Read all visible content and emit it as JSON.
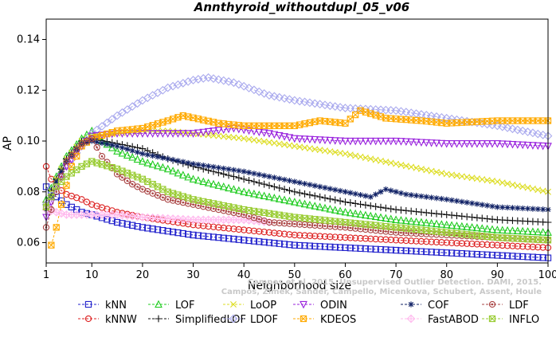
{
  "chart_data": {
    "type": "line",
    "title": "Annthyroid_withoutdupl_05_v06",
    "xlabel": "Neighborhood size",
    "ylabel": "AP",
    "xlim": [
      1,
      100
    ],
    "ylim": [
      0.052,
      0.148
    ],
    "xticks": [
      1,
      10,
      20,
      30,
      40,
      50,
      60,
      70,
      80,
      90,
      100
    ],
    "yticks": [
      0.06,
      0.08,
      0.1,
      0.12,
      0.14
    ],
    "ytick_labels": [
      "0.06",
      "0.08",
      "0.10",
      "0.12",
      "0.14"
    ],
    "grid": false,
    "legend_position": "bottom",
    "series": [
      {
        "name": "kNN",
        "color": "#2222cc",
        "marker": "square",
        "points": [
          [
            1,
            0.082
          ],
          [
            2,
            0.08
          ],
          [
            3,
            0.078
          ],
          [
            5,
            0.075
          ],
          [
            8,
            0.072
          ],
          [
            10,
            0.071
          ],
          [
            15,
            0.068
          ],
          [
            20,
            0.066
          ],
          [
            30,
            0.063
          ],
          [
            40,
            0.061
          ],
          [
            50,
            0.059
          ],
          [
            60,
            0.058
          ],
          [
            70,
            0.057
          ],
          [
            80,
            0.056
          ],
          [
            90,
            0.055
          ],
          [
            100,
            0.054
          ]
        ]
      },
      {
        "name": "kNNW",
        "color": "#dd2222",
        "marker": "circle",
        "points": [
          [
            1,
            0.09
          ],
          [
            2,
            0.085
          ],
          [
            3,
            0.082
          ],
          [
            5,
            0.079
          ],
          [
            8,
            0.077
          ],
          [
            10,
            0.075
          ],
          [
            15,
            0.072
          ],
          [
            20,
            0.07
          ],
          [
            30,
            0.067
          ],
          [
            40,
            0.065
          ],
          [
            50,
            0.063
          ],
          [
            60,
            0.062
          ],
          [
            70,
            0.061
          ],
          [
            80,
            0.06
          ],
          [
            90,
            0.059
          ],
          [
            100,
            0.058
          ]
        ]
      },
      {
        "name": "LOF",
        "color": "#22cc22",
        "marker": "triangle-up",
        "points": [
          [
            1,
            0.077
          ],
          [
            3,
            0.086
          ],
          [
            5,
            0.094
          ],
          [
            8,
            0.101
          ],
          [
            10,
            0.104
          ],
          [
            12,
            0.1
          ],
          [
            15,
            0.096
          ],
          [
            20,
            0.092
          ],
          [
            25,
            0.089
          ],
          [
            30,
            0.085
          ],
          [
            40,
            0.08
          ],
          [
            50,
            0.076
          ],
          [
            60,
            0.072
          ],
          [
            70,
            0.069
          ],
          [
            80,
            0.067
          ],
          [
            90,
            0.065
          ],
          [
            100,
            0.064
          ]
        ]
      },
      {
        "name": "SimplifiedLOF",
        "color": "#111111",
        "marker": "plus",
        "points": [
          [
            1,
            0.076
          ],
          [
            3,
            0.085
          ],
          [
            5,
            0.093
          ],
          [
            8,
            0.1
          ],
          [
            10,
            0.101
          ],
          [
            15,
            0.099
          ],
          [
            20,
            0.097
          ],
          [
            25,
            0.093
          ],
          [
            30,
            0.09
          ],
          [
            40,
            0.085
          ],
          [
            50,
            0.08
          ],
          [
            60,
            0.076
          ],
          [
            70,
            0.073
          ],
          [
            80,
            0.071
          ],
          [
            90,
            0.069
          ],
          [
            100,
            0.068
          ]
        ]
      },
      {
        "name": "LoOP",
        "color": "#dddd22",
        "marker": "x",
        "points": [
          [
            1,
            0.075
          ],
          [
            3,
            0.085
          ],
          [
            5,
            0.093
          ],
          [
            8,
            0.1
          ],
          [
            10,
            0.102
          ],
          [
            15,
            0.103
          ],
          [
            20,
            0.104
          ],
          [
            25,
            0.104
          ],
          [
            30,
            0.103
          ],
          [
            40,
            0.101
          ],
          [
            50,
            0.098
          ],
          [
            60,
            0.095
          ],
          [
            70,
            0.091
          ],
          [
            80,
            0.087
          ],
          [
            90,
            0.084
          ],
          [
            100,
            0.08
          ]
        ]
      },
      {
        "name": "LDOF",
        "color": "#aaaaee",
        "marker": "diamond",
        "points": [
          [
            1,
            0.075
          ],
          [
            3,
            0.082
          ],
          [
            5,
            0.09
          ],
          [
            8,
            0.098
          ],
          [
            10,
            0.103
          ],
          [
            15,
            0.11
          ],
          [
            20,
            0.116
          ],
          [
            25,
            0.121
          ],
          [
            30,
            0.124
          ],
          [
            33,
            0.125
          ],
          [
            38,
            0.123
          ],
          [
            45,
            0.118
          ],
          [
            50,
            0.116
          ],
          [
            60,
            0.113
          ],
          [
            70,
            0.112
          ],
          [
            80,
            0.109
          ],
          [
            90,
            0.106
          ],
          [
            100,
            0.102
          ]
        ]
      },
      {
        "name": "ODIN",
        "color": "#9922dd",
        "marker": "triangle-down",
        "points": [
          [
            1,
            0.07
          ],
          [
            3,
            0.082
          ],
          [
            5,
            0.09
          ],
          [
            8,
            0.098
          ],
          [
            10,
            0.102
          ],
          [
            15,
            0.103
          ],
          [
            20,
            0.103
          ],
          [
            30,
            0.103
          ],
          [
            38,
            0.105
          ],
          [
            45,
            0.103
          ],
          [
            50,
            0.101
          ],
          [
            60,
            0.1
          ],
          [
            70,
            0.1
          ],
          [
            80,
            0.099
          ],
          [
            90,
            0.099
          ],
          [
            100,
            0.098
          ]
        ]
      },
      {
        "name": "KDEOS",
        "color": "#ffaa00",
        "marker": "square-x",
        "points": [
          [
            2,
            0.059
          ],
          [
            3,
            0.066
          ],
          [
            4,
            0.075
          ],
          [
            6,
            0.09
          ],
          [
            8,
            0.098
          ],
          [
            10,
            0.101
          ],
          [
            15,
            0.104
          ],
          [
            20,
            0.105
          ],
          [
            25,
            0.108
          ],
          [
            28,
            0.11
          ],
          [
            35,
            0.107
          ],
          [
            40,
            0.106
          ],
          [
            50,
            0.106
          ],
          [
            55,
            0.108
          ],
          [
            60,
            0.107
          ],
          [
            63,
            0.112
          ],
          [
            68,
            0.109
          ],
          [
            75,
            0.108
          ],
          [
            80,
            0.107
          ],
          [
            90,
            0.108
          ],
          [
            100,
            0.108
          ]
        ]
      },
      {
        "name": "COF",
        "color": "#112266",
        "marker": "asterisk",
        "points": [
          [
            1,
            0.073
          ],
          [
            3,
            0.084
          ],
          [
            5,
            0.092
          ],
          [
            8,
            0.099
          ],
          [
            10,
            0.1
          ],
          [
            15,
            0.098
          ],
          [
            20,
            0.095
          ],
          [
            25,
            0.093
          ],
          [
            30,
            0.091
          ],
          [
            40,
            0.088
          ],
          [
            50,
            0.084
          ],
          [
            60,
            0.08
          ],
          [
            65,
            0.078
          ],
          [
            68,
            0.081
          ],
          [
            72,
            0.079
          ],
          [
            80,
            0.077
          ],
          [
            90,
            0.074
          ],
          [
            100,
            0.073
          ]
        ]
      },
      {
        "name": "FastABOD",
        "color": "#ffbbee",
        "marker": "diamond-plus",
        "points": [
          [
            1,
            0.073
          ],
          [
            3,
            0.072
          ],
          [
            5,
            0.071
          ],
          [
            8,
            0.071
          ],
          [
            10,
            0.071
          ],
          [
            15,
            0.071
          ],
          [
            20,
            0.07
          ],
          [
            30,
            0.069
          ],
          [
            40,
            0.069
          ],
          [
            45,
            0.068
          ]
        ]
      },
      {
        "name": "LDF",
        "color": "#aa4444",
        "marker": "circle-dot",
        "points": [
          [
            1,
            0.066
          ],
          [
            3,
            0.08
          ],
          [
            5,
            0.092
          ],
          [
            8,
            0.099
          ],
          [
            10,
            0.101
          ],
          [
            12,
            0.094
          ],
          [
            15,
            0.087
          ],
          [
            18,
            0.083
          ],
          [
            20,
            0.081
          ],
          [
            25,
            0.077
          ],
          [
            30,
            0.075
          ],
          [
            40,
            0.071
          ],
          [
            45,
            0.068
          ],
          [
            60,
            0.066
          ],
          [
            70,
            0.064
          ],
          [
            80,
            0.063
          ],
          [
            90,
            0.062
          ],
          [
            100,
            0.061
          ]
        ]
      },
      {
        "name": "INFLO",
        "color": "#99cc33",
        "marker": "hourglass",
        "points": [
          [
            1,
            0.074
          ],
          [
            3,
            0.082
          ],
          [
            5,
            0.086
          ],
          [
            8,
            0.09
          ],
          [
            10,
            0.092
          ],
          [
            15,
            0.089
          ],
          [
            20,
            0.085
          ],
          [
            25,
            0.08
          ],
          [
            30,
            0.077
          ],
          [
            40,
            0.073
          ],
          [
            50,
            0.07
          ],
          [
            60,
            0.068
          ],
          [
            70,
            0.066
          ],
          [
            80,
            0.064
          ],
          [
            90,
            0.062
          ],
          [
            100,
            0.061
          ]
        ]
      }
    ],
    "legend_order": [
      "kNN",
      "kNNW",
      "LOF",
      "SimplifiedLOF",
      "LoOP",
      "LDOF",
      "ODIN",
      "KDEOS",
      "COF",
      "FastABOD",
      "LDF",
      "INFLO"
    ],
    "annotation": {
      "line1": "Campos et al. 2015. Unsupervised Outlier Detection. DAMI, 2015.",
      "line2": "Campos, Zimek, Sander, Campello, Micenkova, Schubert, Assent, Houle"
    }
  }
}
